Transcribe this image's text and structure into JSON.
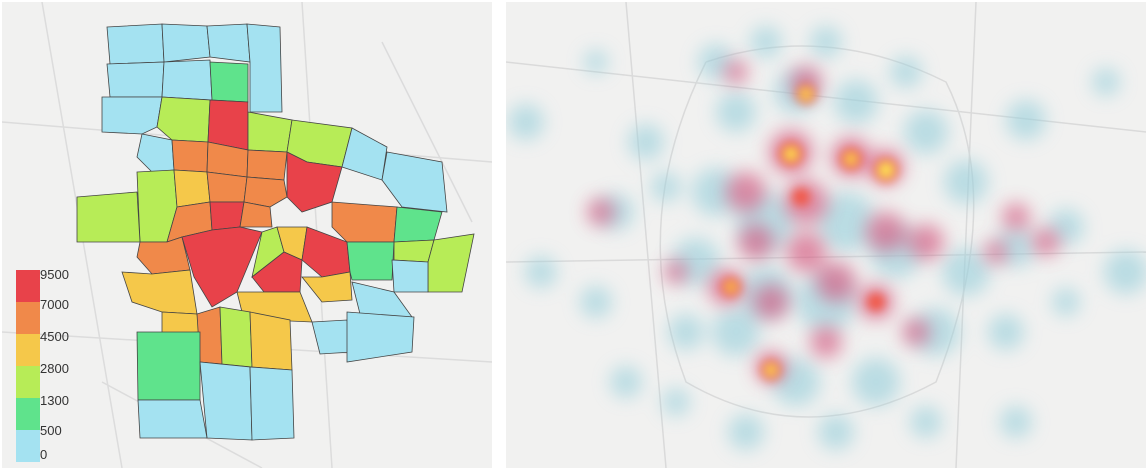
{
  "legend": {
    "labels": [
      "9500",
      "7000",
      "4500",
      "2800",
      "1300",
      "500",
      "0"
    ],
    "colors": [
      "#e8424a",
      "#f0894a",
      "#f5c84a",
      "#b7ec57",
      "#5fe38c",
      "#a4e2f1"
    ]
  },
  "choropleth_colors": {
    "red": "#e8424a",
    "orange": "#f0894a",
    "yellow": "#f5c84a",
    "lime": "#b7ec57",
    "green": "#5fe38c",
    "cyan": "#a4e2f1"
  },
  "heatmap_colors": {
    "low": "#9bd0dc",
    "mid": "#d4527a",
    "high": "#f2533e",
    "peak": "#fff15a"
  }
}
